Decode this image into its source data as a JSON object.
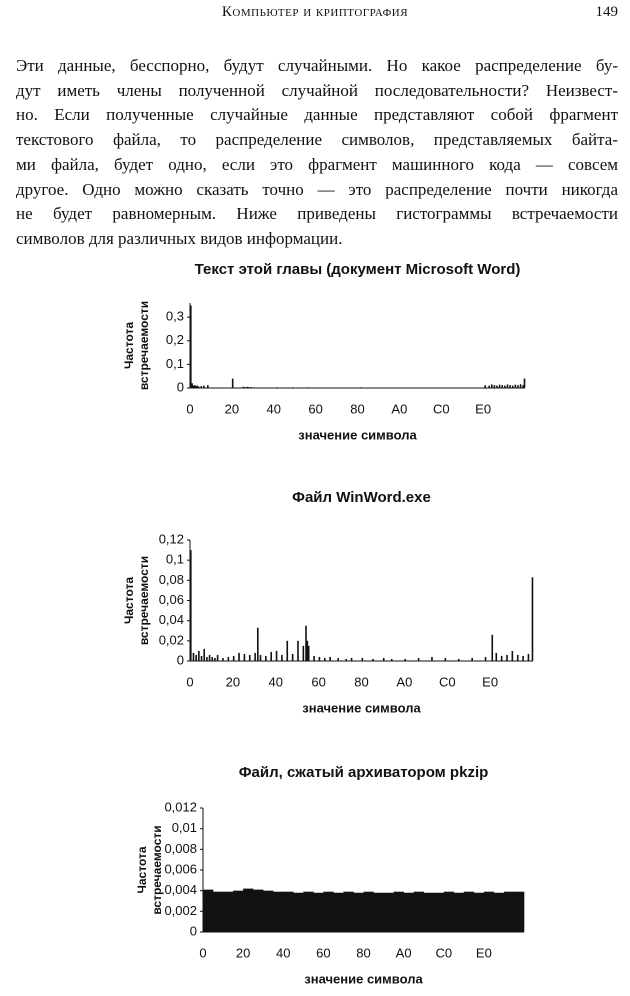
{
  "header": {
    "title": "Компьютер и криптография",
    "page": "149"
  },
  "paragraph": {
    "lines": [
      "Эти данные, бесспорно, будут случайными. Но какое распределение бу-",
      "дут иметь члены полученной случайной последовательности? Неизвест-",
      "но. Если полученные случайные данные представляют собой фрагмент",
      "текстового файла, то распределение символов, представляемых байта-",
      "ми файла, будет одно, если это фрагмент машинного кода — совсем",
      "другое. Одно можно сказать точно — это распределение почти никогда",
      "не будет равномерным. Ниже приведены гистограммы встречаемости",
      "символов для различных видов информации."
    ]
  },
  "chart_data": [
    {
      "type": "bar",
      "title": "Текст этой главы (документ Microsoft Word)",
      "xlabel": "значение символа",
      "ylabel": [
        "Частота",
        "встречаемости"
      ],
      "color": "#111111",
      "x": [
        0,
        1,
        2,
        3,
        4,
        5,
        6,
        8,
        10,
        13,
        32,
        40,
        41,
        43,
        44,
        46,
        66,
        78,
        90,
        130,
        225,
        228,
        230,
        232,
        234,
        236,
        238,
        240,
        242,
        244,
        246,
        248,
        250,
        252,
        254,
        255
      ],
      "values": [
        0.35,
        0.02,
        0.01,
        0.012,
        0.008,
        0.01,
        0.006,
        0.008,
        0.01,
        0.012,
        0.04,
        0.005,
        0.004,
        0.005,
        0.004,
        0.004,
        0.003,
        0.003,
        0.003,
        0.003,
        0.012,
        0.01,
        0.015,
        0.012,
        0.01,
        0.014,
        0.012,
        0.01,
        0.015,
        0.012,
        0.01,
        0.014,
        0.012,
        0.016,
        0.012,
        0.04
      ],
      "xlim": [
        0,
        256
      ],
      "ylim": [
        0,
        0.36
      ],
      "xticks": [
        0,
        {
          "value": 32,
          "label": "20"
        },
        {
          "value": 64,
          "label": "40"
        },
        {
          "value": 96,
          "label": "60"
        },
        {
          "value": 128,
          "label": "80"
        },
        {
          "value": 160,
          "label": "A0"
        },
        {
          "value": 192,
          "label": "C0"
        },
        {
          "value": 224,
          "label": "E0"
        }
      ],
      "yticks": [
        0,
        {
          "value": 0.1,
          "label": "0,1"
        },
        {
          "value": 0.2,
          "label": "0,2"
        },
        {
          "value": 0.3,
          "label": "0,3"
        }
      ]
    },
    {
      "type": "bar",
      "title": "Файл WinWord.exe",
      "xlabel": "значение символа",
      "ylabel": [
        "Частота",
        "встречаемости"
      ],
      "color": "#111111",
      "x": [
        0,
        2,
        4,
        6,
        8,
        10,
        12,
        14,
        16,
        18,
        20,
        24,
        28,
        32,
        36,
        40,
        44,
        48,
        50,
        52,
        56,
        60,
        64,
        68,
        72,
        76,
        80,
        84,
        86,
        87,
        88,
        92,
        96,
        100,
        104,
        110,
        116,
        120,
        128,
        136,
        144,
        150,
        160,
        170,
        180,
        190,
        200,
        210,
        220,
        225,
        228,
        232,
        236,
        240,
        244,
        248,
        252,
        255
      ],
      "values": [
        0.11,
        0.008,
        0.006,
        0.01,
        0.005,
        0.012,
        0.004,
        0.006,
        0.004,
        0.003,
        0.006,
        0.003,
        0.004,
        0.005,
        0.008,
        0.007,
        0.006,
        0.008,
        0.033,
        0.006,
        0.005,
        0.009,
        0.01,
        0.006,
        0.02,
        0.007,
        0.02,
        0.015,
        0.035,
        0.02,
        0.015,
        0.005,
        0.004,
        0.003,
        0.004,
        0.003,
        0.002,
        0.003,
        0.003,
        0.002,
        0.003,
        0.002,
        0.002,
        0.003,
        0.004,
        0.003,
        0.002,
        0.003,
        0.004,
        0.026,
        0.008,
        0.005,
        0.006,
        0.01,
        0.006,
        0.005,
        0.007,
        0.083
      ],
      "xlim": [
        0,
        256
      ],
      "ylim": [
        0,
        0.12
      ],
      "xticks": [
        0,
        {
          "value": 32,
          "label": "20"
        },
        {
          "value": 64,
          "label": "40"
        },
        {
          "value": 96,
          "label": "60"
        },
        {
          "value": 128,
          "label": "80"
        },
        {
          "value": 160,
          "label": "A0"
        },
        {
          "value": 192,
          "label": "C0"
        },
        {
          "value": 224,
          "label": "E0"
        }
      ],
      "yticks": [
        0,
        {
          "value": 0.02,
          "label": "0,02"
        },
        {
          "value": 0.04,
          "label": "0,04"
        },
        {
          "value": 0.06,
          "label": "0,06"
        },
        {
          "value": 0.08,
          "label": "0,08"
        },
        {
          "value": 0.1,
          "label": "0,1"
        },
        {
          "value": 0.12,
          "label": "0,12"
        }
      ]
    },
    {
      "type": "histogram",
      "title": "Файл, сжатый архиватором pkzip",
      "xlabel": "значение символа",
      "ylabel": [
        "Частота",
        "встречаемости"
      ],
      "color": "#111111",
      "bins": [
        0,
        8,
        16,
        24,
        32,
        40,
        48,
        56,
        64,
        72,
        80,
        88,
        96,
        104,
        112,
        120,
        128,
        136,
        144,
        152,
        160,
        168,
        176,
        184,
        192,
        200,
        208,
        216,
        224,
        232,
        240,
        248,
        256
      ],
      "values": [
        0.0041,
        0.0039,
        0.0039,
        0.004,
        0.0042,
        0.0041,
        0.004,
        0.0039,
        0.0039,
        0.0038,
        0.0039,
        0.0038,
        0.0039,
        0.0038,
        0.0039,
        0.0038,
        0.0039,
        0.0038,
        0.0038,
        0.0039,
        0.0038,
        0.0039,
        0.0038,
        0.0038,
        0.0039,
        0.0038,
        0.0039,
        0.0038,
        0.0039,
        0.0038,
        0.0039,
        0.0039
      ],
      "xlim": [
        0,
        256
      ],
      "ylim": [
        0,
        0.012
      ],
      "xticks": [
        0,
        {
          "value": 32,
          "label": "20"
        },
        {
          "value": 64,
          "label": "40"
        },
        {
          "value": 96,
          "label": "60"
        },
        {
          "value": 128,
          "label": "80"
        },
        {
          "value": 160,
          "label": "A0"
        },
        {
          "value": 192,
          "label": "C0"
        },
        {
          "value": 224,
          "label": "E0"
        }
      ],
      "yticks": [
        0,
        {
          "value": 0.002,
          "label": "0,002"
        },
        {
          "value": 0.004,
          "label": "0,004"
        },
        {
          "value": 0.006,
          "label": "0,006"
        },
        {
          "value": 0.008,
          "label": "0,008"
        },
        {
          "value": 0.01,
          "label": "0,01"
        },
        {
          "value": 0.012,
          "label": "0,012"
        }
      ]
    }
  ]
}
